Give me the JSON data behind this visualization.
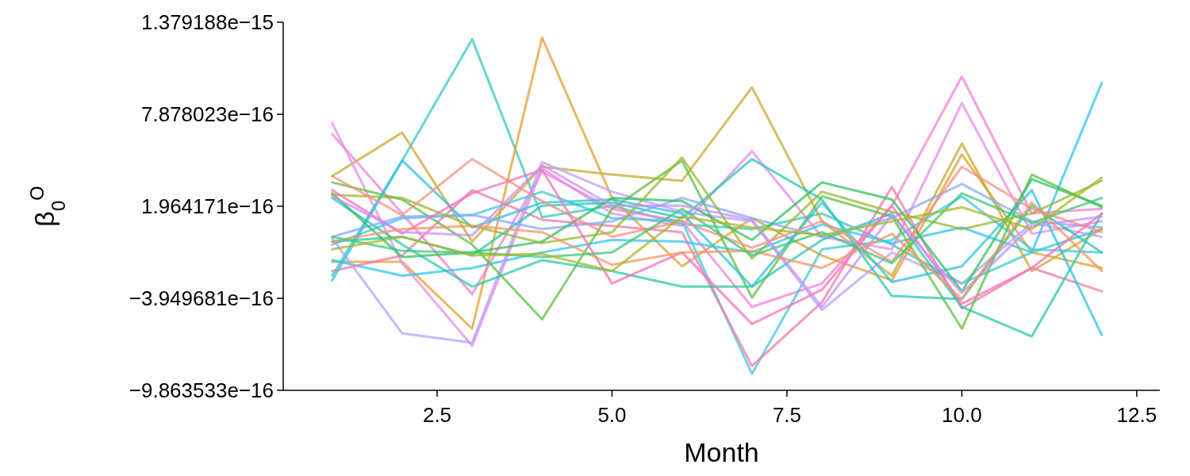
{
  "chart_data": {
    "type": "line",
    "xlabel": "Month",
    "ylabel": "β$_{0}$$^{O}$",
    "x": [
      1,
      2,
      3,
      4,
      5,
      6,
      7,
      8,
      9,
      10,
      11,
      12
    ],
    "xlim": [
      0.3,
      12.83
    ],
    "xticks": [
      2.5,
      {
        "value": 5,
        "label": "5.0"
      },
      7.5,
      {
        "value": 10,
        "label": "10.0"
      },
      12.5
    ],
    "ylim": [
      -9.863533e-16,
      1.379188e-15
    ],
    "yticks": [
      {
        "value": -9.863533e-16,
        "label": "−9.863533e−16"
      },
      {
        "value": -3.949681e-16,
        "label": "−3.949681e−16"
      },
      {
        "value": 1.964171e-16,
        "label": "1.964171e−16"
      },
      {
        "value": 7.878023e-16,
        "label": "7.878023e−16"
      },
      {
        "value": 1.379188e-15,
        "label": "1.379188e−15"
      }
    ],
    "line_style": "solid",
    "series": [
      {
        "color": "#36c9c0",
        "values": [
          -2.5e-16,
          4.9e-16,
          1.27e-15,
          1.26e-16,
          2e-16,
          8e-17,
          5e-17,
          1.5e-16,
          -5e-17,
          -3e-16,
          -1e-16,
          5e-17
        ]
      },
      {
        "color": "#e0a030",
        "values": [
          -1.6e-16,
          -1.6e-16,
          -5.9e-16,
          1.28e-15,
          2.5e-16,
          -1.9e-16,
          1.2e-16,
          -1.2e-16,
          -2.8e-16,
          5.3e-16,
          -1e-16,
          -2e-16
        ]
      },
      {
        "color": "#c8a82e",
        "values": [
          3.9e-16,
          6.7e-16,
          -3e-17,
          4.5e-16,
          4e-16,
          3.6e-16,
          9.6e-16,
          1e-16,
          -2.5e-16,
          6e-16,
          -2.2e-16,
          5e-17
        ]
      },
      {
        "color": "#f77fd0",
        "values": [
          6.6e-16,
          1.5e-16,
          -3.7e-16,
          4.2e-16,
          1.8e-16,
          1e-16,
          -4.5e-16,
          -3e-16,
          2e-16,
          1.03e-15,
          1.5e-16,
          1.8e-16
        ]
      },
      {
        "color": "#e68ae8",
        "values": [
          7.3e-16,
          -1.7e-16,
          -7e-16,
          4.4e-16,
          1.5e-16,
          7e-17,
          5.5e-16,
          0.0,
          -8e-17,
          8.6e-16,
          2e-17,
          1e-16
        ]
      },
      {
        "color": "#2ec4f0",
        "values": [
          -1.5e-16,
          -2.5e-16,
          -2e-16,
          -1e-16,
          -2e-17,
          -3e-17,
          -1e-16,
          8e-17,
          -4e-17,
          6e-17,
          -1e-16,
          9.9e-16
        ]
      },
      {
        "color": "#3cc8e0",
        "values": [
          -5e-17,
          1.2e-16,
          1.4e-16,
          2.9e-16,
          1.2e-16,
          1e-16,
          -8.8e-16,
          -8e-17,
          -2e-17,
          2.6e-16,
          -8e-17,
          -1e-16
        ]
      },
      {
        "color": "#f07aa8",
        "values": [
          -2.2e-16,
          -1.2e-16,
          3e-16,
          1.1e-16,
          7e-17,
          3e-17,
          -8.3e-16,
          -4.2e-16,
          3.2e-16,
          -4.6e-16,
          -2e-16,
          -3.5e-16
        ]
      },
      {
        "color": "#b8a2f8",
        "values": [
          -1e-17,
          -6.2e-16,
          -6.8e-16,
          4.8e-16,
          2.9e-16,
          1.6e-16,
          1e-16,
          -4.7e-16,
          -1e-16,
          -3e-16,
          9e-17,
          0.0
        ]
      },
      {
        "color": "#5cc040",
        "values": [
          3.5e-16,
          2.4e-16,
          -5e-17,
          -5.3e-16,
          1.8e-16,
          4.9e-16,
          -3.9e-16,
          2.6e-16,
          1.3e-16,
          -5.9e-16,
          4e-16,
          1.9e-16
        ]
      },
      {
        "color": "#2cc8a8",
        "values": [
          2.5e-16,
          -5e-17,
          -3.2e-16,
          -1.5e-16,
          -2.2e-16,
          -3.2e-16,
          -3.2e-16,
          -2e-17,
          1.5e-16,
          -4.5e-16,
          -6.4e-16,
          1.5e-16
        ]
      },
      {
        "color": "#30c0e0",
        "values": [
          -2.8e-16,
          4.9e-16,
          6e-17,
          2.2e-16,
          2.4e-16,
          1.5e-16,
          -3.2e-16,
          2.2e-16,
          -2.9e-16,
          -1.9e-16,
          3e-16,
          -6.3e-16
        ]
      },
      {
        "color": "#28c8b0",
        "values": [
          -3e-17,
          0.0,
          -1.2e-16,
          2e-16,
          2.2e-16,
          1.2e-16,
          5e-16,
          2.4e-16,
          -3.8e-16,
          -4e-16,
          2e-16,
          -1e-16
        ]
      },
      {
        "color": "#88aaff",
        "values": [
          0.0,
          1.3e-16,
          1.4e-16,
          5e-17,
          1e-16,
          2.5e-16,
          1.2e-16,
          0.0,
          1.2e-16,
          3.4e-16,
          1e-16,
          6e-17
        ]
      },
      {
        "color": "#30c060",
        "values": [
          2.8e-16,
          -1.3e-16,
          -1e-16,
          -3e-17,
          2.5e-16,
          2.3e-16,
          -2e-17,
          3.5e-16,
          2.4e-16,
          -3.5e-16,
          3.7e-16,
          2e-16
        ]
      },
      {
        "color": "#98b830",
        "values": [
          2.7e-16,
          2.5e-16,
          7e-17,
          -4e-17,
          3e-17,
          5.1e-16,
          -1.4e-16,
          2.9e-16,
          1.6e-16,
          5e-17,
          1.5e-16,
          3.6e-16
        ]
      },
      {
        "color": "#f89080",
        "values": [
          3.9e-16,
          1.4e-16,
          5e-16,
          2.3e-16,
          0.0,
          1e-16,
          -7e-17,
          1e-16,
          -1.6e-16,
          4.5e-16,
          1.8e-16,
          3e-17
        ]
      },
      {
        "color": "#f870b8",
        "values": [
          3e-16,
          2e-17,
          2.8e-16,
          4.3e-16,
          -3e-16,
          -1e-16,
          -5.6e-16,
          -3.4e-16,
          2e-16,
          -4.3e-16,
          -2e-16,
          1.5e-16
        ]
      },
      {
        "color": "#c890f8",
        "values": [
          2.6e-16,
          3e-17,
          1e-17,
          4.6e-16,
          2e-16,
          2e-16,
          1.1e-16,
          -4.5e-16,
          1.4e-16,
          -3.6e-16,
          7e-17,
          1.3e-16
        ]
      },
      {
        "color": "#f09860",
        "values": [
          -3e-17,
          5e-17,
          7e-17,
          3e-17,
          -1.8e-16,
          -1e-16,
          -9e-17,
          -2e-16,
          2e-17,
          -4e-16,
          2.2e-16,
          -2.2e-16
        ]
      },
      {
        "color": "#40c878",
        "values": [
          0.0,
          -9e-17,
          -1e-16,
          -1.3e-16,
          -1e-16,
          1.8e-16,
          -1.2e-16,
          3e-17,
          -1.7e-16,
          2.8e-16,
          9e-17,
          2.5e-16
        ]
      },
      {
        "color": "#a8b828",
        "values": [
          -8e-17,
          0.0,
          -1.2e-16,
          -1.1e-16,
          -2.2e-16,
          1.3e-16,
          6e-17,
          1e-17,
          1e-16,
          1.9e-16,
          5e-17,
          3.8e-16
        ]
      }
    ]
  }
}
